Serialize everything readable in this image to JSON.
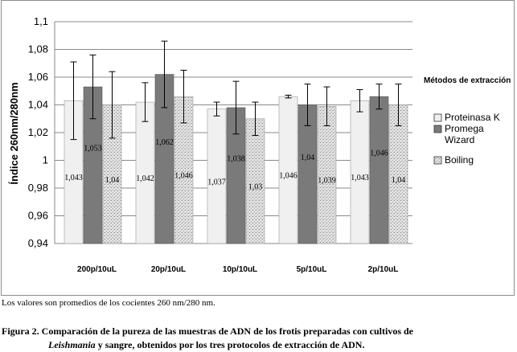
{
  "colors": {
    "proteinasa": "#f0f0f0",
    "promega": "#7a7a7a",
    "boiling": "#d2d2d2",
    "gridline": "#8a8a8a",
    "frame": "#8c8c8c"
  },
  "chart_data": {
    "type": "bar",
    "title": "",
    "xlabel": "",
    "ylabel": "Índice 260nm/280nm",
    "ylim": [
      0.94,
      1.1
    ],
    "yticks": [
      "0,94",
      "0,96",
      "0,98",
      "1",
      "1,02",
      "1,04",
      "1,06",
      "1,08",
      "1,1"
    ],
    "ytick_values": [
      0.94,
      0.96,
      0.98,
      1.0,
      1.02,
      1.04,
      1.06,
      1.08,
      1.1
    ],
    "grid": true,
    "legend_title": "Métodos de extracción",
    "legend_position": "right",
    "categories": [
      "200p/10uL",
      "20p/10uL",
      "10p/10uL",
      "5p/10uL",
      "2p/10uL"
    ],
    "series": [
      {
        "name": "Proteinasa K",
        "name_lines": [
          "Proteinasa K"
        ],
        "values": [
          1.043,
          1.042,
          1.037,
          1.046,
          1.043
        ],
        "labels": [
          "1,043",
          "1,042",
          "1,037",
          "1,046",
          "1,043"
        ],
        "error": [
          0.028,
          0.014,
          0.005,
          0.001,
          0.008
        ]
      },
      {
        "name": "Promega Wizard",
        "name_lines": [
          "Promega",
          "Wizard"
        ],
        "values": [
          1.053,
          1.062,
          1.038,
          1.04,
          1.046
        ],
        "labels": [
          "1,053",
          "1,062",
          "1,038",
          "1,04",
          "1,046"
        ],
        "error": [
          0.023,
          0.024,
          0.019,
          0.015,
          0.009
        ]
      },
      {
        "name": "Boiling",
        "name_lines": [
          "Boiling"
        ],
        "values": [
          1.04,
          1.046,
          1.03,
          1.039,
          1.04
        ],
        "labels": [
          "1,04",
          "1,046",
          "1,03",
          "1,039",
          "1,04"
        ],
        "error": [
          0.024,
          0.019,
          0.012,
          0.014,
          0.015
        ]
      }
    ]
  },
  "note": "Los valores son promedios de los cocientes 260 nm/280 nm.",
  "caption": {
    "line1": "Figura 2. Comparación de la pureza de las muestras de ADN de los frotis preparadas con cultivos de",
    "line2_italic": "Leishmania",
    "line2_rest": " y sangre, obtenidos por los tres protocolos de extracción de ADN."
  }
}
